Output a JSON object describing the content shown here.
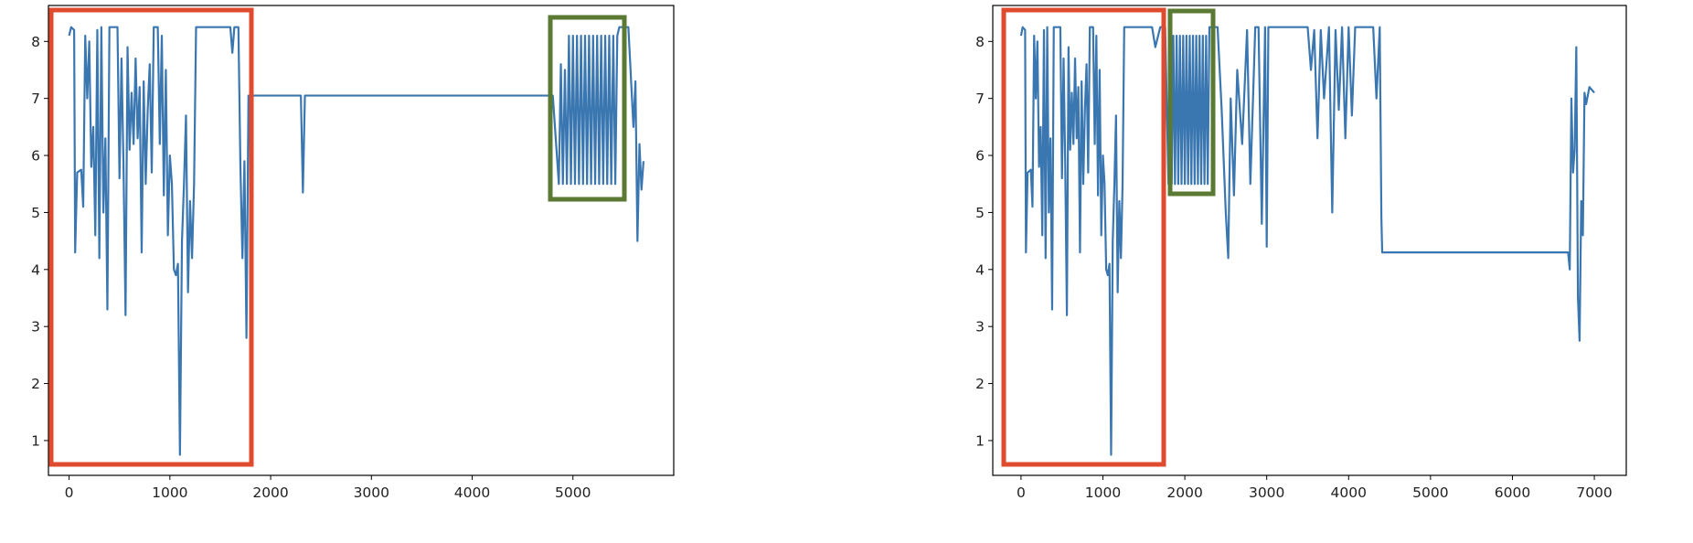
{
  "chart_data": [
    {
      "type": "line",
      "x": [
        0,
        20,
        50,
        60,
        80,
        120,
        140,
        160,
        180,
        200,
        220,
        240,
        260,
        280,
        300,
        320,
        340,
        360,
        380,
        400,
        480,
        500,
        520,
        540,
        560,
        580,
        600,
        620,
        640,
        660,
        680,
        700,
        720,
        740,
        760,
        780,
        800,
        820,
        840,
        880,
        900,
        920,
        940,
        960,
        980,
        1000,
        1020,
        1040,
        1060,
        1080,
        1100,
        1120,
        1140,
        1160,
        1180,
        1200,
        1220,
        1240,
        1260,
        1300,
        1600,
        1620,
        1640,
        1680,
        1700,
        1720,
        1740,
        1760,
        1780,
        2300,
        2320,
        2340,
        4800,
        4860,
        4880,
        4900,
        4920,
        4940,
        4960,
        4980,
        5000,
        5020,
        5040,
        5060,
        5080,
        5100,
        5120,
        5140,
        5160,
        5180,
        5200,
        5220,
        5240,
        5260,
        5280,
        5300,
        5320,
        5340,
        5360,
        5380,
        5400,
        5420,
        5440,
        5460,
        5550,
        5600,
        5620,
        5640,
        5660,
        5680,
        5700
      ],
      "series": [
        {
          "color": "#3a76b0",
          "values": [
            8.1,
            8.25,
            8.2,
            4.3,
            5.7,
            5.75,
            5.1,
            8.1,
            7.0,
            8.0,
            5.8,
            6.5,
            4.6,
            8.2,
            4.2,
            8.25,
            5.0,
            6.3,
            3.3,
            8.25,
            8.25,
            5.6,
            7.7,
            5.8,
            3.2,
            7.9,
            6.1,
            7.1,
            6.2,
            7.7,
            6.3,
            7.2,
            4.3,
            7.3,
            5.5,
            6.8,
            7.6,
            5.7,
            8.25,
            8.25,
            6.2,
            8.1,
            5.3,
            7.5,
            4.6,
            6.0,
            5.5,
            4.0,
            3.9,
            4.1,
            0.75,
            4.5,
            5.5,
            6.7,
            3.6,
            5.2,
            4.2,
            5.5,
            8.25,
            8.25,
            8.25,
            7.8,
            8.25,
            8.25,
            5.8,
            4.2,
            5.9,
            2.8,
            7.05,
            7.05,
            5.35,
            7.05,
            7.05,
            5.5,
            7.6,
            5.5,
            7.5,
            5.5,
            8.1,
            5.5,
            8.1,
            5.5,
            8.1,
            5.5,
            8.1,
            5.5,
            8.1,
            5.5,
            8.1,
            5.5,
            8.1,
            5.5,
            8.1,
            5.5,
            8.1,
            5.5,
            8.1,
            5.5,
            8.1,
            5.5,
            8.1,
            5.5,
            8.1,
            8.25,
            8.25,
            6.5,
            7.3,
            4.5,
            6.2,
            5.4,
            5.9
          ]
        }
      ],
      "xlim": [
        -205,
        6000
      ],
      "ylim": [
        0.39,
        8.63
      ],
      "xticks": [
        0,
        1000,
        2000,
        3000,
        4000,
        5000
      ],
      "yticks": [
        1,
        2,
        3,
        4,
        5,
        6,
        7,
        8
      ]
    },
    {
      "type": "line",
      "x": [
        0,
        20,
        50,
        60,
        80,
        120,
        140,
        160,
        180,
        200,
        220,
        240,
        260,
        280,
        300,
        320,
        340,
        360,
        380,
        400,
        480,
        500,
        520,
        540,
        560,
        580,
        600,
        620,
        640,
        660,
        680,
        700,
        720,
        740,
        760,
        780,
        800,
        820,
        840,
        880,
        900,
        920,
        940,
        960,
        980,
        1000,
        1020,
        1040,
        1060,
        1080,
        1100,
        1120,
        1140,
        1160,
        1180,
        1200,
        1220,
        1240,
        1260,
        1300,
        1600,
        1640,
        1700,
        1760,
        1800,
        1820,
        1840,
        1860,
        1880,
        1900,
        1920,
        1940,
        1960,
        1980,
        2000,
        2020,
        2040,
        2060,
        2080,
        2100,
        2120,
        2140,
        2160,
        2180,
        2200,
        2220,
        2240,
        2260,
        2280,
        2300,
        2400,
        2450,
        2500,
        2530,
        2560,
        2600,
        2640,
        2700,
        2760,
        2800,
        2860,
        2900,
        2940,
        2980,
        3000,
        3020,
        3500,
        3540,
        3580,
        3620,
        3660,
        3700,
        3760,
        3800,
        3840,
        3880,
        3920,
        3960,
        4000,
        4040,
        4080,
        4300,
        4340,
        4380,
        4400,
        4410,
        6680,
        6700,
        6720,
        6740,
        6760,
        6780,
        6800,
        6820,
        6840,
        6860,
        6880,
        6900,
        6940,
        7000
      ],
      "series": [
        {
          "color": "#3a76b0",
          "values": [
            8.1,
            8.25,
            8.2,
            4.3,
            5.7,
            5.75,
            5.1,
            8.1,
            7.0,
            8.0,
            5.8,
            6.5,
            4.6,
            8.2,
            4.2,
            8.25,
            5.0,
            6.3,
            3.3,
            8.25,
            8.25,
            5.6,
            7.7,
            5.8,
            3.2,
            7.9,
            6.1,
            7.1,
            6.2,
            7.7,
            6.3,
            7.2,
            4.3,
            7.3,
            5.5,
            6.8,
            7.6,
            5.7,
            8.25,
            8.25,
            6.2,
            8.1,
            5.3,
            7.5,
            4.6,
            6.0,
            5.5,
            4.0,
            3.9,
            4.1,
            0.75,
            4.5,
            5.5,
            6.7,
            3.6,
            5.2,
            4.2,
            5.5,
            8.25,
            8.25,
            8.25,
            7.9,
            8.25,
            8.25,
            5.5,
            8.1,
            5.5,
            8.1,
            5.5,
            8.1,
            5.5,
            8.1,
            5.5,
            8.1,
            5.5,
            8.1,
            5.5,
            8.1,
            5.5,
            8.1,
            5.5,
            8.1,
            5.5,
            8.1,
            5.5,
            8.1,
            5.5,
            8.1,
            5.5,
            8.25,
            8.25,
            6.8,
            5.0,
            4.2,
            7.0,
            5.3,
            7.5,
            6.2,
            8.2,
            5.5,
            8.25,
            8.25,
            4.8,
            8.25,
            4.4,
            8.25,
            8.25,
            7.5,
            8.2,
            6.3,
            8.2,
            7.0,
            8.25,
            5.0,
            8.2,
            6.8,
            8.25,
            6.3,
            8.25,
            6.7,
            8.25,
            8.25,
            7.0,
            8.25,
            4.9,
            4.3,
            4.3,
            4.0,
            7.0,
            5.7,
            6.1,
            7.9,
            3.5,
            2.75,
            5.2,
            4.6,
            7.1,
            6.9,
            7.2,
            7.1
          ]
        }
      ],
      "xlim": [
        -345,
        7390
      ],
      "ylim": [
        0.39,
        8.63
      ],
      "xticks": [
        0,
        1000,
        2000,
        3000,
        4000,
        5000,
        6000,
        7000
      ],
      "yticks": [
        1,
        2,
        3,
        4,
        5,
        6,
        7,
        8
      ]
    }
  ]
}
